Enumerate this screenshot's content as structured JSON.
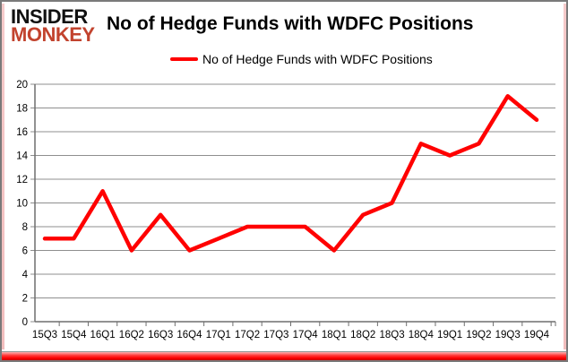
{
  "brand": {
    "line1": "INSIDER",
    "line2": "MONKEY",
    "color": "#c2432e"
  },
  "title": "No of Hedge Funds with WDFC Positions",
  "legend": {
    "label": "No of Hedge Funds with WDFC Positions",
    "color": "#ff0000"
  },
  "chart_data": {
    "type": "line",
    "title": "No of Hedge Funds with WDFC Positions",
    "x": [
      "15Q3",
      "15Q4",
      "16Q1",
      "16Q2",
      "16Q3",
      "16Q4",
      "17Q1",
      "17Q2",
      "17Q3",
      "17Q4",
      "18Q1",
      "18Q2",
      "18Q3",
      "18Q4",
      "19Q1",
      "19Q2",
      "19Q3",
      "19Q4"
    ],
    "series": [
      {
        "name": "No of Hedge Funds with WDFC Positions",
        "color": "#ff0000",
        "values": [
          7,
          7,
          11,
          6,
          9,
          6,
          7,
          8,
          8,
          8,
          6,
          9,
          10,
          15,
          14,
          15,
          19,
          17
        ]
      }
    ],
    "xlabel": "",
    "ylabel": "",
    "ylim": [
      0,
      20
    ],
    "ytick_step": 2,
    "grid": true,
    "legend_position": "top-center"
  },
  "colors": {
    "grid": "#8f8f8f",
    "axis": "#6f6f6f",
    "text": "#000000",
    "frame_border": "#7a7a7a",
    "bottom_bar": "#ff0000",
    "edge_glow": "#f2c4c3"
  }
}
